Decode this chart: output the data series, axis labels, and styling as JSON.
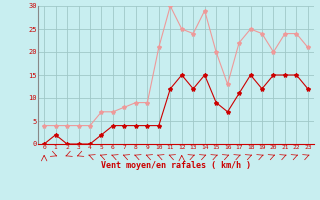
{
  "x": [
    0,
    1,
    2,
    3,
    4,
    5,
    6,
    7,
    8,
    9,
    10,
    11,
    12,
    13,
    14,
    15,
    16,
    17,
    18,
    19,
    20,
    21,
    22,
    23
  ],
  "wind_avg": [
    0,
    2,
    0,
    0,
    0,
    2,
    4,
    4,
    4,
    4,
    4,
    12,
    15,
    12,
    15,
    9,
    7,
    11,
    15,
    12,
    15,
    15,
    15,
    12
  ],
  "wind_gust": [
    4,
    4,
    4,
    4,
    4,
    7,
    7,
    8,
    9,
    9,
    21,
    30,
    25,
    24,
    29,
    20,
    13,
    22,
    25,
    24,
    20,
    24,
    24,
    21
  ],
  "xlabel": "Vent moyen/en rafales ( km/h )",
  "xlim": [
    0,
    23
  ],
  "ylim": [
    0,
    30
  ],
  "yticks": [
    0,
    5,
    10,
    15,
    20,
    25,
    30
  ],
  "xticks": [
    0,
    1,
    2,
    3,
    4,
    5,
    6,
    7,
    8,
    9,
    10,
    11,
    12,
    13,
    14,
    15,
    16,
    17,
    18,
    19,
    20,
    21,
    22,
    23
  ],
  "bg_color": "#c8eef0",
  "grid_color": "#a0c8c8",
  "avg_color": "#cc0000",
  "gust_color": "#ee9999",
  "line_width": 0.8,
  "marker_size": 3
}
